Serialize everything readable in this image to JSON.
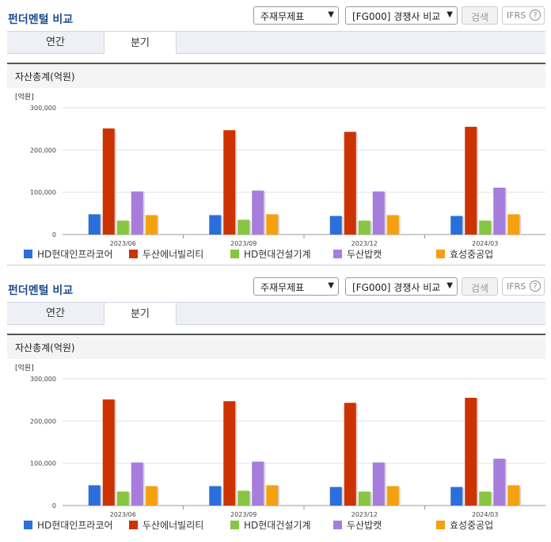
{
  "panels": [
    {
      "title": "펀더멘털 비교",
      "select1": "주재무제표",
      "select2": "[FG000] 경쟁사 비교",
      "search_label": "검색",
      "ifrs_label": "IFRS",
      "help_glyph": "?",
      "tabs": [
        {
          "label": "연간"
        },
        {
          "label": "분기"
        }
      ],
      "section_title": "자산총계(억원)"
    },
    {
      "title": "펀더멘털 비교",
      "select1": "주재무제표",
      "select2": "[FG000] 경쟁사 비교",
      "search_label": "검색",
      "ifrs_label": "IFRS",
      "help_glyph": "?",
      "tabs": [
        {
          "label": "연간"
        },
        {
          "label": "분기"
        }
      ],
      "section_title": "자산총계(억원)"
    }
  ],
  "chart_data": [
    {
      "type": "bar",
      "unit_label": "[억원]",
      "categories": [
        "2023/06",
        "2023/09",
        "2023/12",
        "2024/03"
      ],
      "ylim": [
        0,
        300000
      ],
      "yticks": [
        {
          "v": 0,
          "label": "0"
        },
        {
          "v": 100000,
          "label": "100,000"
        },
        {
          "v": 200000,
          "label": "200,000"
        },
        {
          "v": 300000,
          "label": "300,000"
        }
      ],
      "series": [
        {
          "name": "HD현대인프라코어",
          "color": "#2a6fdb",
          "values": [
            48000,
            46000,
            44000,
            44000
          ]
        },
        {
          "name": "두산에너빌리티",
          "color": "#cc3300",
          "values": [
            251000,
            247000,
            243000,
            255000
          ]
        },
        {
          "name": "HD현대건설기계",
          "color": "#88c540",
          "values": [
            33000,
            35000,
            33000,
            33000
          ]
        },
        {
          "name": "두산밥캣",
          "color": "#a77ddc",
          "values": [
            102000,
            104000,
            102000,
            111000
          ]
        },
        {
          "name": "효성중공업",
          "color": "#f5a00f",
          "values": [
            46000,
            48000,
            46000,
            48000
          ]
        }
      ]
    },
    {
      "type": "bar",
      "unit_label": "[억원]",
      "categories": [
        "2023/06",
        "2023/09",
        "2023/12",
        "2024/03"
      ],
      "ylim": [
        0,
        300000
      ],
      "yticks": [
        {
          "v": 0,
          "label": "0"
        },
        {
          "v": 100000,
          "label": "100,000"
        },
        {
          "v": 200000,
          "label": "200,000"
        },
        {
          "v": 300000,
          "label": "300,000"
        }
      ],
      "series": [
        {
          "name": "HD현대인프라코어",
          "color": "#2a6fdb",
          "values": [
            48000,
            46000,
            44000,
            44000
          ]
        },
        {
          "name": "두산에너빌리티",
          "color": "#cc3300",
          "values": [
            251000,
            247000,
            243000,
            255000
          ]
        },
        {
          "name": "HD현대건설기계",
          "color": "#88c540",
          "values": [
            33000,
            35000,
            33000,
            33000
          ]
        },
        {
          "name": "두산밥캣",
          "color": "#a77ddc",
          "values": [
            102000,
            104000,
            102000,
            111000
          ]
        },
        {
          "name": "효성중공업",
          "color": "#f5a00f",
          "values": [
            46000,
            48000,
            46000,
            48000
          ]
        }
      ]
    }
  ]
}
